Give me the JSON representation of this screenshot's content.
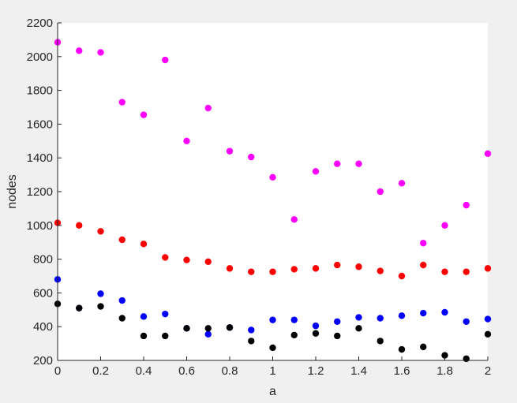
{
  "chart_data": {
    "type": "scatter",
    "title": "",
    "xlabel": "a",
    "ylabel": "nodes",
    "xlim": [
      0,
      2
    ],
    "ylim": [
      200,
      2200
    ],
    "xticks": [
      0,
      0.2,
      0.4,
      0.6,
      0.8,
      1,
      1.2,
      1.4,
      1.6,
      1.8,
      2
    ],
    "xtick_labels": [
      "0",
      "0.2",
      "0.4",
      "0.6",
      "0.8",
      "1",
      "1.2",
      "1.4",
      "1.6",
      "1.8",
      "2"
    ],
    "yticks": [
      200,
      400,
      600,
      800,
      1000,
      1200,
      1400,
      1600,
      1800,
      2000,
      2200
    ],
    "ytick_labels": [
      "200",
      "400",
      "600",
      "800",
      "1000",
      "1200",
      "1400",
      "1600",
      "1800",
      "2000",
      "2200"
    ],
    "grid": false,
    "x": [
      0,
      0.1,
      0.2,
      0.3,
      0.4,
      0.5,
      0.6,
      0.7,
      0.8,
      0.9,
      1.0,
      1.1,
      1.2,
      1.3,
      1.4,
      1.5,
      1.6,
      1.7,
      1.8,
      1.9,
      2.0
    ],
    "series": [
      {
        "color": "#ff00ff",
        "values": [
          2085,
          2035,
          2025,
          1730,
          1655,
          1980,
          1500,
          1695,
          1440,
          1405,
          1285,
          1035,
          1320,
          1365,
          1365,
          1200,
          1250,
          895,
          1000,
          1120,
          1425
        ]
      },
      {
        "color": "#ff0000",
        "values": [
          1015,
          1000,
          965,
          915,
          890,
          810,
          795,
          785,
          745,
          725,
          725,
          740,
          745,
          765,
          755,
          730,
          700,
          765,
          725,
          725,
          745
        ]
      },
      {
        "color": "#0000ff",
        "values": [
          680,
          510,
          595,
          555,
          460,
          475,
          390,
          355,
          395,
          380,
          440,
          440,
          405,
          430,
          455,
          450,
          465,
          480,
          485,
          430,
          445
        ]
      },
      {
        "color": "#000000",
        "values": [
          535,
          510,
          520,
          450,
          345,
          345,
          390,
          390,
          395,
          315,
          275,
          350,
          360,
          345,
          390,
          315,
          265,
          280,
          230,
          210,
          355
        ]
      }
    ]
  }
}
